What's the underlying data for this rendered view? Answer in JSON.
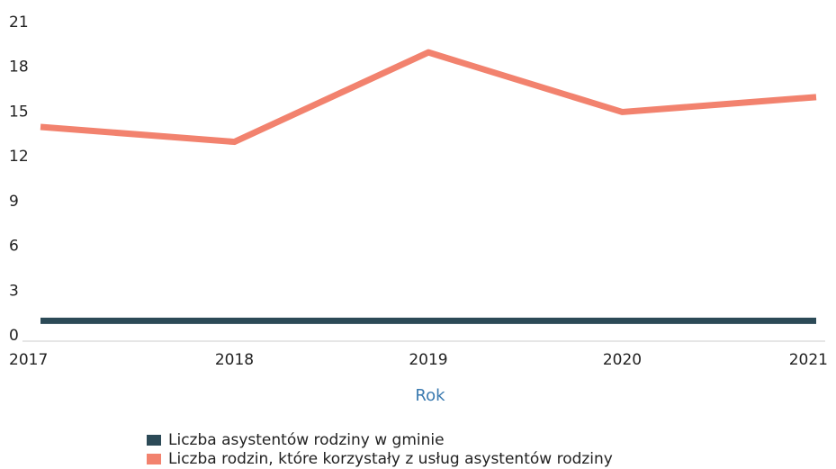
{
  "chart_data": {
    "type": "line",
    "categories": [
      "2017",
      "2018",
      "2019",
      "2020",
      "2021"
    ],
    "x_label": "Rok",
    "series": [
      {
        "name": "Liczba asystentów rodziny w gminie",
        "color": "#2c4a57",
        "values": [
          1,
          1,
          1,
          1,
          1
        ]
      },
      {
        "name": "Liczba rodzin, które korzystały z usług asystentów rodziny",
        "color": "#f2826e",
        "values": [
          14,
          13,
          19,
          15,
          16
        ]
      }
    ],
    "ylim": [
      0,
      21
    ],
    "yticks": [
      0,
      3,
      6,
      9,
      12,
      15,
      18,
      21
    ],
    "grid": false
  }
}
